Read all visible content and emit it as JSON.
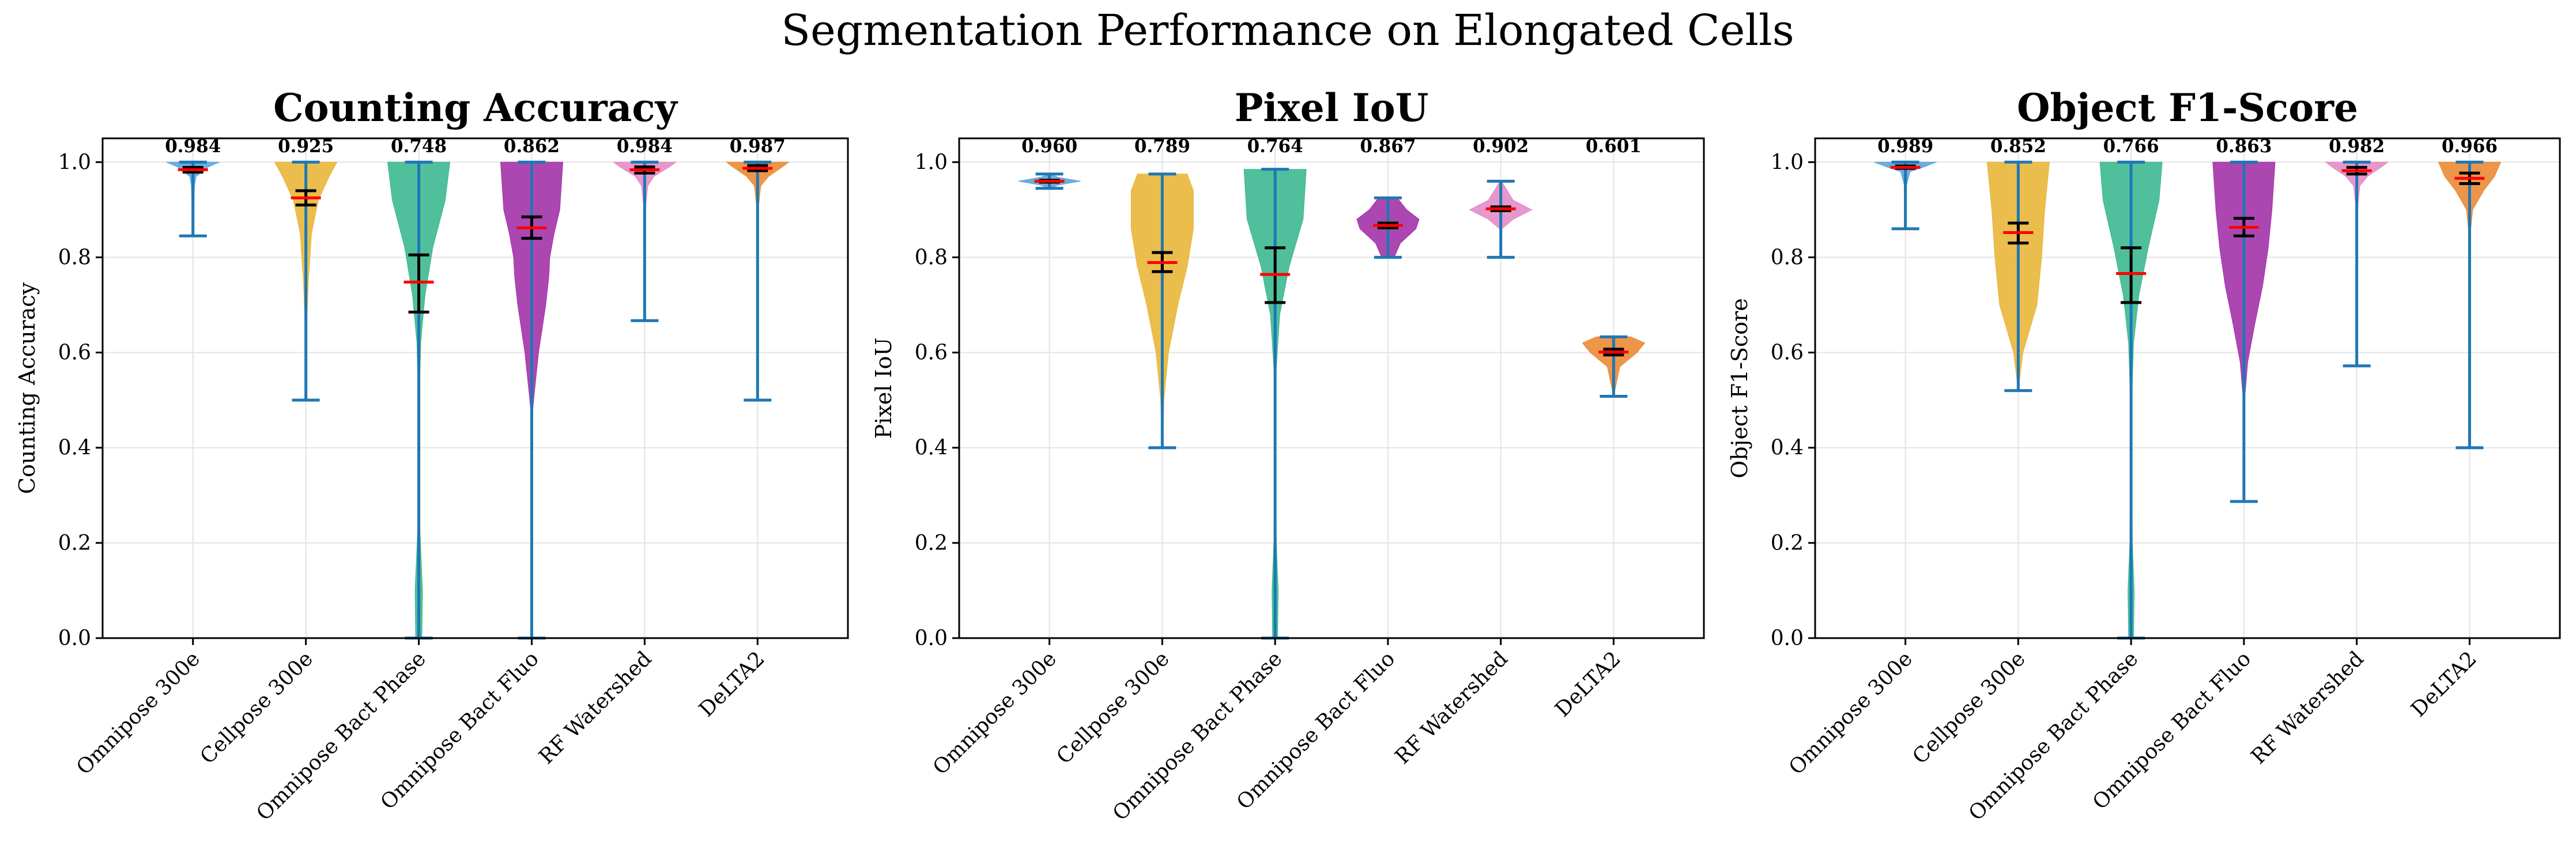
{
  "figure": {
    "title": "Segmentation Performance on Elongated Cells"
  },
  "colors": {
    "Omnipose 300e": "#5DA5DA",
    "Cellpose 300e": "#E9B638",
    "Omnipose Bact Phase": "#3DB891",
    "Omnipose Bact Fluo": "#A333A8",
    "RF Watershed": "#E38CC6",
    "DeLTA2": "#EB8A35",
    "whisker": "#1F77B4",
    "mean_line": "#FF0000",
    "ci_line": "#000000"
  },
  "chart_data": [
    {
      "type": "violin",
      "title": "Counting Accuracy",
      "xlabel": "",
      "ylabel": "Counting Accuracy",
      "ylim": [
        0.0,
        1.05
      ],
      "yticks": [
        "0.0",
        "0.2",
        "0.4",
        "0.6",
        "0.8",
        "1.0"
      ],
      "grid": true,
      "categories": [
        "Omnipose 300e",
        "Cellpose 300e",
        "Omnipose Bact Phase",
        "Omnipose Bact Fluo",
        "RF Watershed",
        "DeLTA2"
      ],
      "mean_labels": [
        "0.984",
        "0.925",
        "0.748",
        "0.862",
        "0.984",
        "0.987"
      ],
      "series": [
        {
          "category": "Omnipose 300e",
          "mean": 0.984,
          "ci": [
            0.979,
            0.989
          ],
          "min": 0.845,
          "max": 1.0,
          "density": [
            [
              0.845,
              0.0
            ],
            [
              0.9,
              0.03
            ],
            [
              0.95,
              0.05
            ],
            [
              0.97,
              0.1
            ],
            [
              0.99,
              0.5
            ],
            [
              1.0,
              0.85
            ]
          ]
        },
        {
          "category": "Cellpose 300e",
          "mean": 0.925,
          "ci": [
            0.91,
            0.94
          ],
          "min": 0.5,
          "max": 1.0,
          "density": [
            [
              0.5,
              0.0
            ],
            [
              0.65,
              0.02
            ],
            [
              0.75,
              0.08
            ],
            [
              0.85,
              0.18
            ],
            [
              0.92,
              0.4
            ],
            [
              0.97,
              0.75
            ],
            [
              1.0,
              1.0
            ]
          ]
        },
        {
          "category": "Omnipose Bact Phase",
          "mean": 0.748,
          "ci": [
            0.685,
            0.805
          ],
          "min": 0.0,
          "max": 1.0,
          "density": [
            [
              0.0,
              0.1
            ],
            [
              0.1,
              0.12
            ],
            [
              0.22,
              0.04
            ],
            [
              0.32,
              0.02
            ],
            [
              0.5,
              0.02
            ],
            [
              0.62,
              0.06
            ],
            [
              0.72,
              0.2
            ],
            [
              0.82,
              0.45
            ],
            [
              0.92,
              0.85
            ],
            [
              1.0,
              1.0
            ]
          ]
        },
        {
          "category": "Omnipose Bact Fluo",
          "mean": 0.862,
          "ci": [
            0.84,
            0.885
          ],
          "min": 0.0,
          "max": 1.0,
          "density": [
            [
              0.0,
              0.0
            ],
            [
              0.45,
              0.0
            ],
            [
              0.5,
              0.06
            ],
            [
              0.6,
              0.22
            ],
            [
              0.7,
              0.45
            ],
            [
              0.76,
              0.55
            ],
            [
              0.8,
              0.58
            ],
            [
              0.85,
              0.72
            ],
            [
              0.9,
              0.9
            ],
            [
              1.0,
              1.0
            ]
          ]
        },
        {
          "category": "RF Watershed",
          "mean": 0.984,
          "ci": [
            0.977,
            0.99
          ],
          "min": 0.667,
          "max": 1.0,
          "density": [
            [
              0.667,
              0.0
            ],
            [
              0.9,
              0.02
            ],
            [
              0.95,
              0.1
            ],
            [
              0.97,
              0.3
            ],
            [
              0.99,
              0.8
            ],
            [
              1.0,
              1.0
            ]
          ]
        },
        {
          "category": "DeLTA2",
          "mean": 0.987,
          "ci": [
            0.982,
            0.993
          ],
          "min": 0.5,
          "max": 1.0,
          "density": [
            [
              0.5,
              0.0
            ],
            [
              0.9,
              0.02
            ],
            [
              0.95,
              0.1
            ],
            [
              0.97,
              0.35
            ],
            [
              0.99,
              0.8
            ],
            [
              1.0,
              1.0
            ]
          ]
        }
      ]
    },
    {
      "type": "violin",
      "title": "Pixel IoU",
      "xlabel": "",
      "ylabel": "Pixel IoU",
      "ylim": [
        0.0,
        1.05
      ],
      "yticks": [
        "0.0",
        "0.2",
        "0.4",
        "0.6",
        "0.8",
        "1.0"
      ],
      "grid": true,
      "categories": [
        "Omnipose 300e",
        "Cellpose 300e",
        "Omnipose Bact Phase",
        "Omnipose Bact Fluo",
        "RF Watershed",
        "DeLTA2"
      ],
      "mean_labels": [
        "0.960",
        "0.789",
        "0.764",
        "0.867",
        "0.902",
        "0.601"
      ],
      "series": [
        {
          "category": "Omnipose 300e",
          "mean": 0.96,
          "ci": [
            0.958,
            0.962
          ],
          "min": 0.945,
          "max": 0.975,
          "density": [
            [
              0.945,
              0.0
            ],
            [
              0.952,
              0.3
            ],
            [
              0.96,
              1.0
            ],
            [
              0.968,
              0.3
            ],
            [
              0.975,
              0.0
            ]
          ]
        },
        {
          "category": "Cellpose 300e",
          "mean": 0.789,
          "ci": [
            0.77,
            0.81
          ],
          "min": 0.4,
          "max": 0.975,
          "density": [
            [
              0.4,
              0.0
            ],
            [
              0.5,
              0.05
            ],
            [
              0.6,
              0.2
            ],
            [
              0.7,
              0.5
            ],
            [
              0.78,
              0.8
            ],
            [
              0.86,
              1.0
            ],
            [
              0.94,
              1.0
            ],
            [
              0.975,
              0.8
            ]
          ]
        },
        {
          "category": "Omnipose Bact Phase",
          "mean": 0.764,
          "ci": [
            0.705,
            0.82
          ],
          "min": 0.0,
          "max": 0.985,
          "density": [
            [
              0.0,
              0.08
            ],
            [
              0.1,
              0.1
            ],
            [
              0.2,
              0.04
            ],
            [
              0.3,
              0.02
            ],
            [
              0.55,
              0.02
            ],
            [
              0.68,
              0.15
            ],
            [
              0.78,
              0.45
            ],
            [
              0.88,
              0.9
            ],
            [
              0.985,
              1.0
            ]
          ]
        },
        {
          "category": "Omnipose Bact Fluo",
          "mean": 0.867,
          "ci": [
            0.862,
            0.872
          ],
          "min": 0.8,
          "max": 0.925,
          "density": [
            [
              0.8,
              0.2
            ],
            [
              0.83,
              0.4
            ],
            [
              0.86,
              0.9
            ],
            [
              0.88,
              1.0
            ],
            [
              0.9,
              0.6
            ],
            [
              0.925,
              0.3
            ]
          ]
        },
        {
          "category": "RF Watershed",
          "mean": 0.902,
          "ci": [
            0.898,
            0.906
          ],
          "min": 0.8,
          "max": 0.96,
          "density": [
            [
              0.8,
              0.0
            ],
            [
              0.86,
              0.04
            ],
            [
              0.88,
              0.4
            ],
            [
              0.9,
              1.0
            ],
            [
              0.92,
              0.4
            ],
            [
              0.96,
              0.02
            ]
          ]
        },
        {
          "category": "DeLTA2",
          "mean": 0.601,
          "ci": [
            0.595,
            0.607
          ],
          "min": 0.508,
          "max": 0.633,
          "density": [
            [
              0.508,
              0.0
            ],
            [
              0.57,
              0.2
            ],
            [
              0.6,
              0.75
            ],
            [
              0.62,
              1.0
            ],
            [
              0.633,
              0.55
            ]
          ]
        }
      ]
    },
    {
      "type": "violin",
      "title": "Object F1-Score",
      "xlabel": "",
      "ylabel": "Object F1-Score",
      "ylim": [
        0.0,
        1.05
      ],
      "yticks": [
        "0.0",
        "0.2",
        "0.4",
        "0.6",
        "0.8",
        "1.0"
      ],
      "grid": true,
      "categories": [
        "Omnipose 300e",
        "Cellpose 300e",
        "Omnipose Bact Phase",
        "Omnipose Bact Fluo",
        "RF Watershed",
        "DeLTA2"
      ],
      "mean_labels": [
        "0.989",
        "0.852",
        "0.766",
        "0.863",
        "0.982",
        "0.966"
      ],
      "series": [
        {
          "category": "Omnipose 300e",
          "mean": 0.989,
          "ci": [
            0.987,
            0.992
          ],
          "min": 0.86,
          "max": 1.0,
          "density": [
            [
              0.86,
              0.0
            ],
            [
              0.95,
              0.03
            ],
            [
              0.98,
              0.15
            ],
            [
              0.99,
              0.6
            ],
            [
              1.0,
              1.0
            ]
          ]
        },
        {
          "category": "Cellpose 300e",
          "mean": 0.852,
          "ci": [
            0.83,
            0.872
          ],
          "min": 0.52,
          "max": 1.0,
          "density": [
            [
              0.52,
              0.0
            ],
            [
              0.6,
              0.15
            ],
            [
              0.7,
              0.6
            ],
            [
              0.8,
              0.75
            ],
            [
              0.9,
              0.85
            ],
            [
              1.0,
              1.0
            ]
          ]
        },
        {
          "category": "Omnipose Bact Phase",
          "mean": 0.766,
          "ci": [
            0.705,
            0.82
          ],
          "min": 0.0,
          "max": 1.0,
          "density": [
            [
              0.0,
              0.08
            ],
            [
              0.1,
              0.1
            ],
            [
              0.2,
              0.04
            ],
            [
              0.32,
              0.02
            ],
            [
              0.5,
              0.02
            ],
            [
              0.62,
              0.08
            ],
            [
              0.72,
              0.25
            ],
            [
              0.82,
              0.55
            ],
            [
              0.92,
              0.9
            ],
            [
              1.0,
              1.0
            ]
          ]
        },
        {
          "category": "Omnipose Bact Fluo",
          "mean": 0.863,
          "ci": [
            0.845,
            0.882
          ],
          "min": 0.287,
          "max": 1.0,
          "density": [
            [
              0.287,
              0.0
            ],
            [
              0.5,
              0.02
            ],
            [
              0.58,
              0.12
            ],
            [
              0.66,
              0.35
            ],
            [
              0.74,
              0.6
            ],
            [
              0.82,
              0.78
            ],
            [
              0.9,
              0.9
            ],
            [
              1.0,
              1.0
            ]
          ]
        },
        {
          "category": "RF Watershed",
          "mean": 0.982,
          "ci": [
            0.975,
            0.989
          ],
          "min": 0.572,
          "max": 1.0,
          "density": [
            [
              0.572,
              0.0
            ],
            [
              0.9,
              0.02
            ],
            [
              0.95,
              0.1
            ],
            [
              0.97,
              0.35
            ],
            [
              0.99,
              0.8
            ],
            [
              1.0,
              1.0
            ]
          ]
        },
        {
          "category": "DeLTA2",
          "mean": 0.966,
          "ci": [
            0.955,
            0.977
          ],
          "min": 0.4,
          "max": 1.0,
          "density": [
            [
              0.4,
              0.0
            ],
            [
              0.85,
              0.02
            ],
            [
              0.9,
              0.1
            ],
            [
              0.94,
              0.45
            ],
            [
              0.97,
              0.8
            ],
            [
              1.0,
              1.0
            ]
          ]
        }
      ]
    }
  ]
}
